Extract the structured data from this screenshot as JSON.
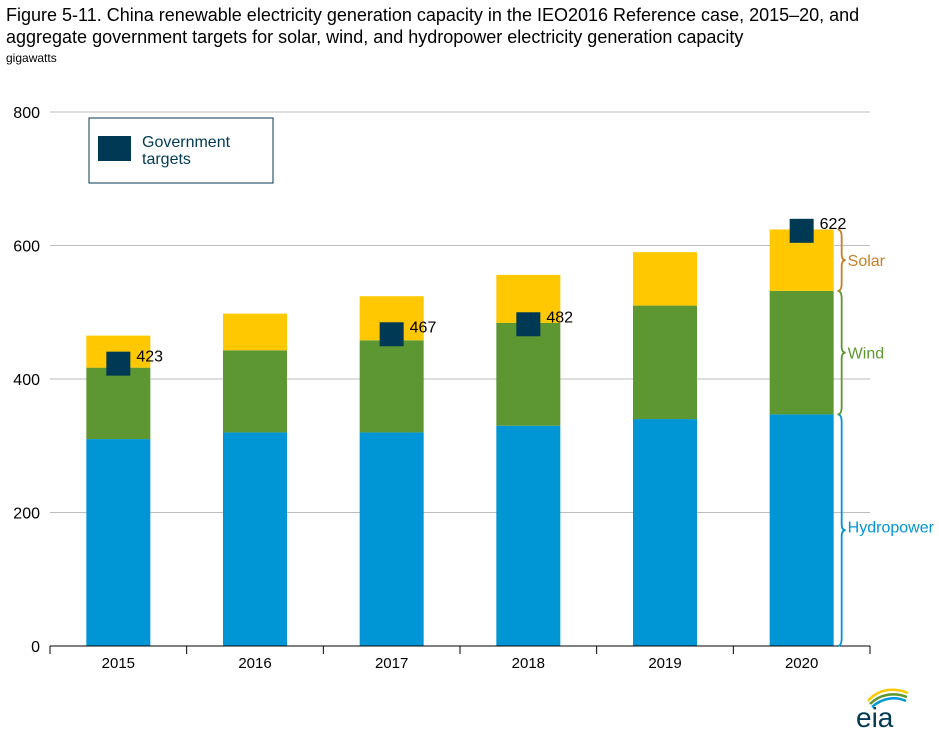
{
  "title": "Figure 5-11. China renewable electricity generation capacity in the IEO2016 Reference case, 2015–20, and aggregate government targets for solar, wind, and hydropower electricity generation capacity",
  "units_label": "gigawatts",
  "logo_text": "eia",
  "colors": {
    "hydropower": "#0096d6",
    "wind": "#5d9732",
    "solar": "#ffc800",
    "target": "#003953",
    "solar_label": "#c87e28",
    "wind_label": "#5d9732",
    "hydro_label": "#0096d6",
    "grid": "#bdbdbd"
  },
  "chart_data": {
    "type": "bar",
    "stacked": true,
    "categories": [
      "2015",
      "2016",
      "2017",
      "2018",
      "2019",
      "2020"
    ],
    "series": [
      {
        "name": "Hydropower",
        "values": [
          310,
          320,
          320,
          330,
          340,
          347
        ]
      },
      {
        "name": "Wind",
        "values": [
          107,
          123,
          138,
          154,
          170,
          185
        ]
      },
      {
        "name": "Solar",
        "values": [
          48,
          55,
          66,
          72,
          80,
          92
        ]
      }
    ],
    "targets": {
      "name": "Government targets",
      "values": [
        423,
        null,
        467,
        482,
        null,
        622
      ],
      "labels": [
        "423",
        "",
        "467",
        "482",
        "",
        "622"
      ]
    },
    "yticks": [
      0,
      200,
      400,
      600,
      800
    ],
    "ylim": [
      0,
      800
    ],
    "grid": true,
    "legend": {
      "position": "top-left",
      "label_line1": "Government",
      "label_line2": "targets"
    },
    "bracket_labels": [
      "Hydropower",
      "Wind",
      "Solar"
    ]
  }
}
